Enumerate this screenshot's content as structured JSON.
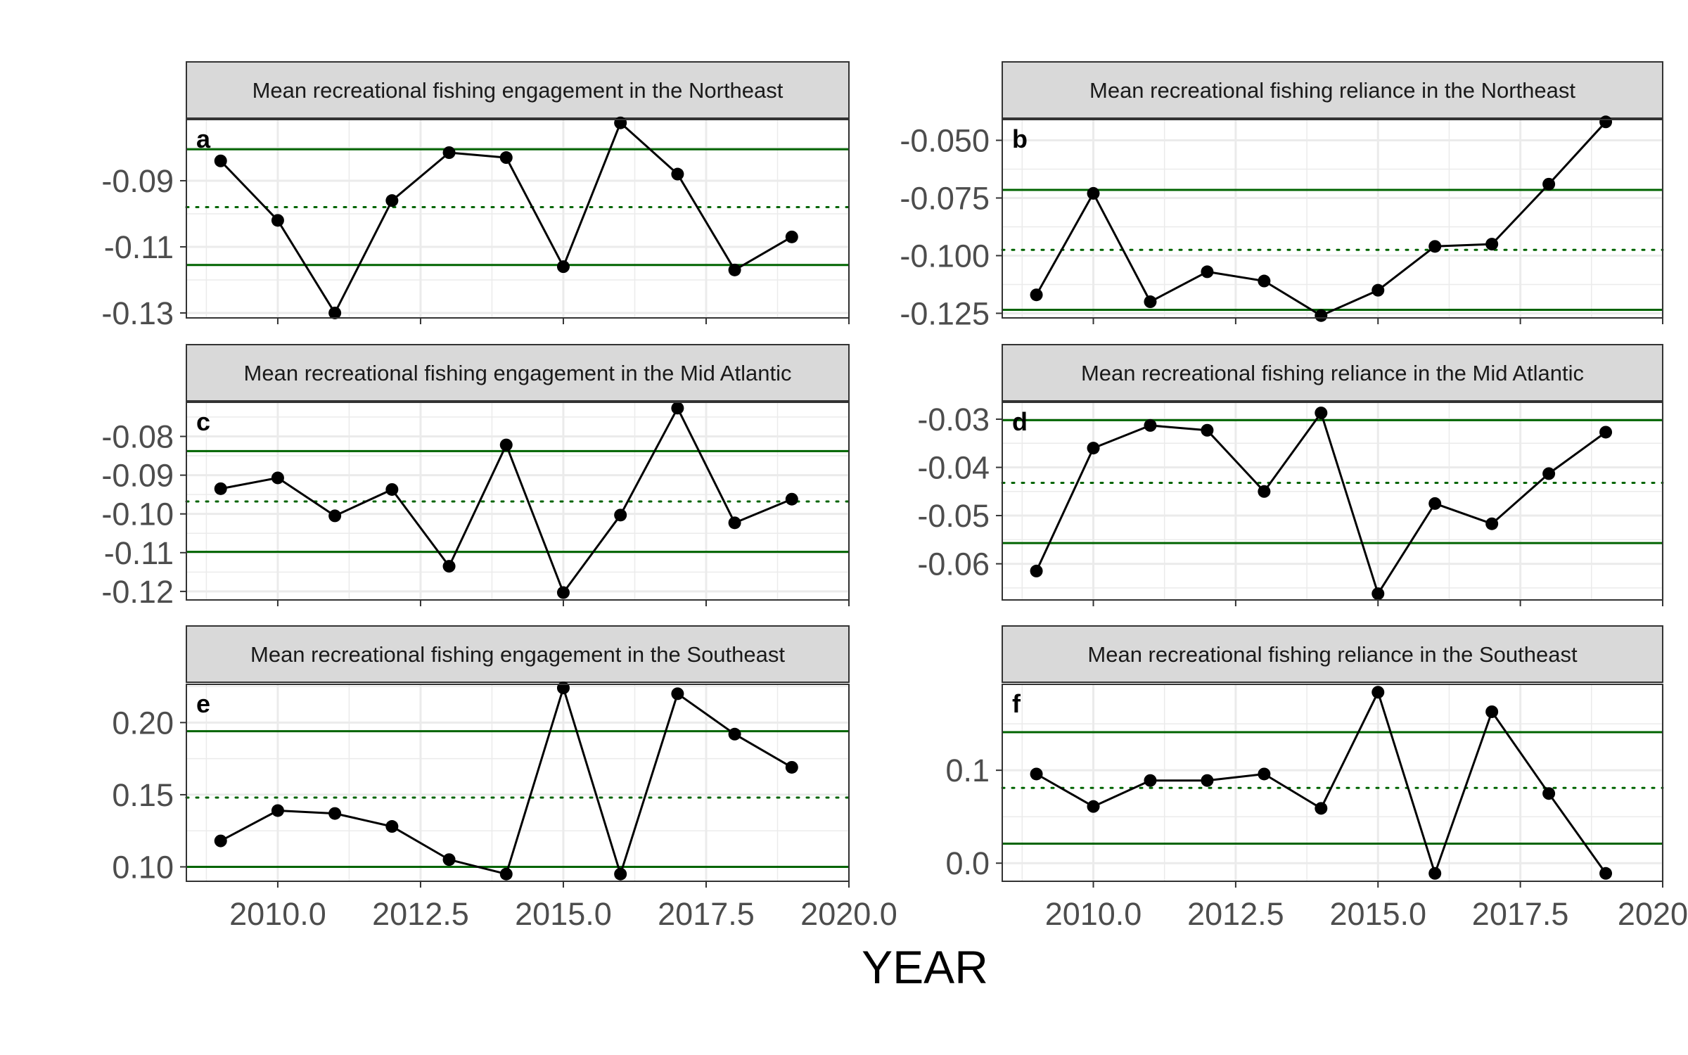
{
  "figure": {
    "xlabel": "YEAR"
  },
  "colors": {
    "control_line": "#006400",
    "data_line": "#000000",
    "strip_fill": "#d9d9d9",
    "panel_border": "#333333",
    "grid": "#ebebeb"
  },
  "chart_data": [
    {
      "type": "line",
      "tag": "a",
      "title": "Mean recreational fishing engagement in the Northeast",
      "x": [
        2009,
        2010,
        2011,
        2012,
        2013,
        2014,
        2015,
        2016,
        2017,
        2018,
        2019
      ],
      "series": [
        {
          "values": [
            -0.084,
            -0.102,
            -0.13,
            -0.096,
            -0.0815,
            -0.083,
            -0.116,
            -0.0725,
            -0.088,
            -0.117,
            -0.107
          ]
        }
      ],
      "mean": -0.098,
      "upper_limit": -0.0805,
      "lower_limit": -0.1155,
      "xlim": [
        2008.4,
        2020.0
      ],
      "ylim": [
        -0.1315,
        -0.0715
      ],
      "yticks": [
        -0.09,
        -0.11,
        -0.13
      ],
      "ytick_labels": [
        "-0.09",
        "-0.11",
        "-0.13"
      ],
      "xticks": [
        2010.0,
        2012.5,
        2015.0,
        2017.5,
        2020.0
      ],
      "xtick_labels": []
    },
    {
      "type": "line",
      "tag": "b",
      "title": "Mean recreational fishing reliance in the Northeast",
      "x": [
        2009,
        2010,
        2011,
        2012,
        2013,
        2014,
        2015,
        2016,
        2017,
        2018,
        2019
      ],
      "series": [
        {
          "values": [
            -0.117,
            -0.073,
            -0.12,
            -0.107,
            -0.111,
            -0.126,
            -0.115,
            -0.096,
            -0.095,
            -0.069,
            -0.042
          ]
        }
      ],
      "mean": -0.0975,
      "upper_limit": -0.0715,
      "lower_limit": -0.1235,
      "xlim": [
        2008.4,
        2020.0
      ],
      "ylim": [
        -0.127,
        -0.041
      ],
      "yticks": [
        -0.05,
        -0.075,
        -0.1,
        -0.125
      ],
      "ytick_labels": [
        "-0.050",
        "-0.075",
        "-0.100",
        "-0.125"
      ],
      "xticks": [
        2010.0,
        2012.5,
        2015.0,
        2017.5,
        2020.0
      ],
      "xtick_labels": []
    },
    {
      "type": "line",
      "tag": "c",
      "title": "Mean recreational fishing engagement in the Mid Atlantic",
      "x": [
        2009,
        2010,
        2011,
        2012,
        2013,
        2014,
        2015,
        2016,
        2017,
        2018,
        2019
      ],
      "series": [
        {
          "values": [
            -0.0935,
            -0.0907,
            -0.1005,
            -0.0937,
            -0.1135,
            -0.0822,
            -0.1203,
            -0.1003,
            -0.0727,
            -0.1023,
            -0.0962
          ]
        }
      ],
      "mean": -0.0968,
      "upper_limit": -0.0838,
      "lower_limit": -0.1098,
      "xlim": [
        2008.4,
        2020.0
      ],
      "ylim": [
        -0.1222,
        -0.0712
      ],
      "yticks": [
        -0.08,
        -0.09,
        -0.1,
        -0.11,
        -0.12
      ],
      "ytick_labels": [
        "-0.08",
        "-0.09",
        "-0.10",
        "-0.11",
        "-0.12"
      ],
      "xticks": [
        2010.0,
        2012.5,
        2015.0,
        2017.5,
        2020.0
      ],
      "xtick_labels": []
    },
    {
      "type": "line",
      "tag": "d",
      "title": "Mean recreational fishing reliance in the Mid Atlantic",
      "x": [
        2009,
        2010,
        2011,
        2012,
        2013,
        2014,
        2015,
        2016,
        2017,
        2018,
        2019
      ],
      "series": [
        {
          "values": [
            -0.0615,
            -0.036,
            -0.0313,
            -0.0323,
            -0.045,
            -0.0287,
            -0.0662,
            -0.0475,
            -0.0517,
            -0.0413,
            -0.0327
          ]
        }
      ],
      "mean": -0.0432,
      "upper_limit": -0.0302,
      "lower_limit": -0.0557,
      "xlim": [
        2008.4,
        2020.0
      ],
      "ylim": [
        -0.0675,
        -0.0265
      ],
      "yticks": [
        -0.03,
        -0.04,
        -0.05,
        -0.06
      ],
      "ytick_labels": [
        "-0.03",
        "-0.04",
        "-0.05",
        "-0.06"
      ],
      "xticks": [
        2010.0,
        2012.5,
        2015.0,
        2017.5,
        2020.0
      ],
      "xtick_labels": []
    },
    {
      "type": "line",
      "tag": "e",
      "title": "Mean recreational fishing engagement in the Southeast",
      "x": [
        2009,
        2010,
        2011,
        2012,
        2013,
        2014,
        2015,
        2016,
        2017,
        2018,
        2019
      ],
      "series": [
        {
          "values": [
            0.118,
            0.139,
            0.137,
            0.128,
            0.105,
            0.095,
            0.224,
            0.095,
            0.22,
            0.192,
            0.169
          ]
        }
      ],
      "mean": 0.148,
      "upper_limit": 0.194,
      "lower_limit": 0.1,
      "xlim": [
        2008.4,
        2020.0
      ],
      "ylim": [
        0.09,
        0.2265
      ],
      "yticks": [
        0.1,
        0.15,
        0.2
      ],
      "ytick_labels": [
        "0.10",
        "0.15",
        "0.20"
      ],
      "xticks": [
        2010.0,
        2012.5,
        2015.0,
        2017.5,
        2020.0
      ],
      "xtick_labels": [
        "2010.0",
        "2012.5",
        "2015.0",
        "2017.5",
        "2020.0"
      ]
    },
    {
      "type": "line",
      "tag": "f",
      "title": "Mean recreational fishing reliance in the Southeast",
      "x": [
        2009,
        2010,
        2011,
        2012,
        2013,
        2014,
        2015,
        2016,
        2017,
        2018,
        2019
      ],
      "series": [
        {
          "values": [
            0.096,
            0.061,
            0.089,
            0.089,
            0.096,
            0.059,
            0.184,
            -0.011,
            0.163,
            0.075,
            -0.011
          ]
        }
      ],
      "mean": 0.081,
      "upper_limit": 0.141,
      "lower_limit": 0.021,
      "xlim": [
        2008.4,
        2020.0
      ],
      "ylim": [
        -0.0195,
        0.1925
      ],
      "yticks": [
        0.0,
        0.1
      ],
      "ytick_labels": [
        "0.0",
        "0.1"
      ],
      "xticks": [
        2010.0,
        2012.5,
        2015.0,
        2017.5,
        2020.0
      ],
      "xtick_labels": [
        "2010.0",
        "2012.5",
        "2015.0",
        "2017.5",
        "2020"
      ]
    }
  ]
}
